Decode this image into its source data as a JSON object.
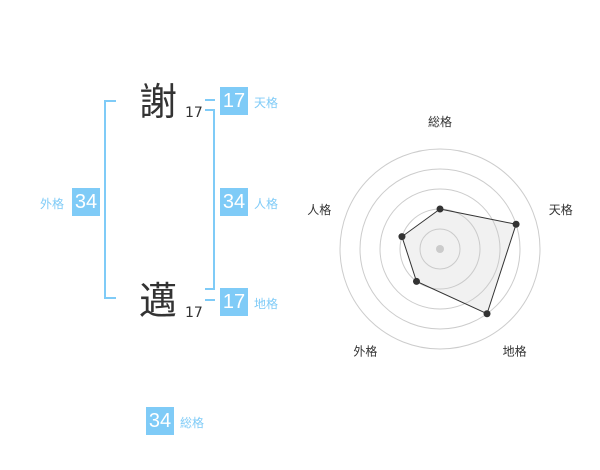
{
  "name": {
    "chars": [
      {
        "char": "謝",
        "strokes": "17"
      },
      {
        "char": "邁",
        "strokes": "17"
      }
    ]
  },
  "kaku": {
    "tenkaku": {
      "label": "天格",
      "value": "17"
    },
    "jinkaku": {
      "label": "人格",
      "value": "34"
    },
    "chikaku": {
      "label": "地格",
      "value": "17"
    },
    "gaikaku": {
      "label": "外格",
      "value": "34"
    },
    "soukaku": {
      "label": "総格",
      "value": "34"
    }
  },
  "colors": {
    "accent": "#7fcbf7",
    "text": "#333333"
  },
  "chart_data": {
    "type": "radar",
    "axes": [
      "総格",
      "天格",
      "地格",
      "外格",
      "人格"
    ],
    "values": [
      2,
      4,
      4,
      2,
      2
    ],
    "range": [
      0,
      5
    ],
    "grid": true
  }
}
